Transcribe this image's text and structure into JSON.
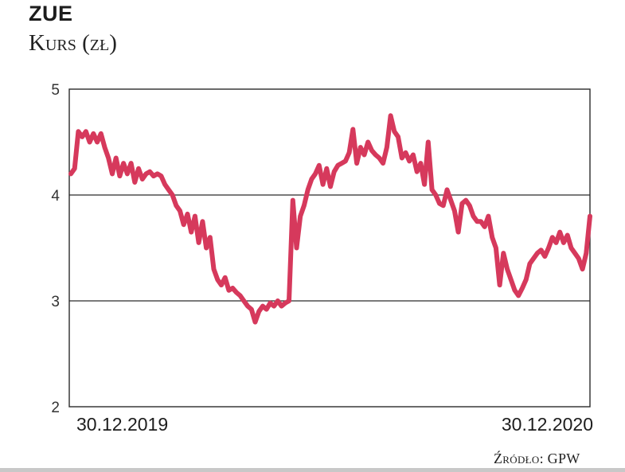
{
  "chart_data": {
    "type": "line",
    "title": "ZUE",
    "subtitle": "Kurs (zł)",
    "source": "Źródło: GPW",
    "y_ticks": [
      "5",
      "4",
      "3",
      "2"
    ],
    "ylim": [
      2,
      5
    ],
    "x_labels": [
      "30.12.2019",
      "30.12.2020"
    ],
    "grid": "horizontal",
    "line_color": "#d6395c",
    "series": [
      {
        "values": [
          4.2,
          4.25,
          4.6,
          4.55,
          4.6,
          4.5,
          4.58,
          4.5,
          4.58,
          4.45,
          4.35,
          4.2,
          4.35,
          4.18,
          4.3,
          4.2,
          4.3,
          4.12,
          4.25,
          4.15,
          4.2,
          4.22,
          4.18,
          4.2,
          4.18,
          4.1,
          4.05,
          4.0,
          3.9,
          3.85,
          3.72,
          3.82,
          3.65,
          3.8,
          3.55,
          3.75,
          3.5,
          3.6,
          3.3,
          3.2,
          3.15,
          3.22,
          3.1,
          3.12,
          3.08,
          3.05,
          3.0,
          2.95,
          2.92,
          2.8,
          2.9,
          2.95,
          2.92,
          2.98,
          2.95,
          3.0,
          2.95,
          2.98,
          3.0,
          3.95,
          3.5,
          3.8,
          3.9,
          4.05,
          4.15,
          4.2,
          4.28,
          4.1,
          4.25,
          4.08,
          4.22,
          4.28,
          4.3,
          4.32,
          4.4,
          4.62,
          4.3,
          4.45,
          4.38,
          4.5,
          4.42,
          4.38,
          4.35,
          4.3,
          4.45,
          4.75,
          4.6,
          4.55,
          4.35,
          4.4,
          4.32,
          4.38,
          4.22,
          4.3,
          4.1,
          4.5,
          4.05,
          4.0,
          3.92,
          3.9,
          4.05,
          3.95,
          3.85,
          3.65,
          3.92,
          3.95,
          3.9,
          3.8,
          3.75,
          3.75,
          3.7,
          3.8,
          3.6,
          3.5,
          3.15,
          3.45,
          3.3,
          3.2,
          3.1,
          3.05,
          3.12,
          3.2,
          3.35,
          3.4,
          3.45,
          3.48,
          3.42,
          3.5,
          3.6,
          3.55,
          3.65,
          3.55,
          3.62,
          3.5,
          3.45,
          3.4,
          3.3,
          3.45,
          3.8
        ]
      }
    ]
  }
}
